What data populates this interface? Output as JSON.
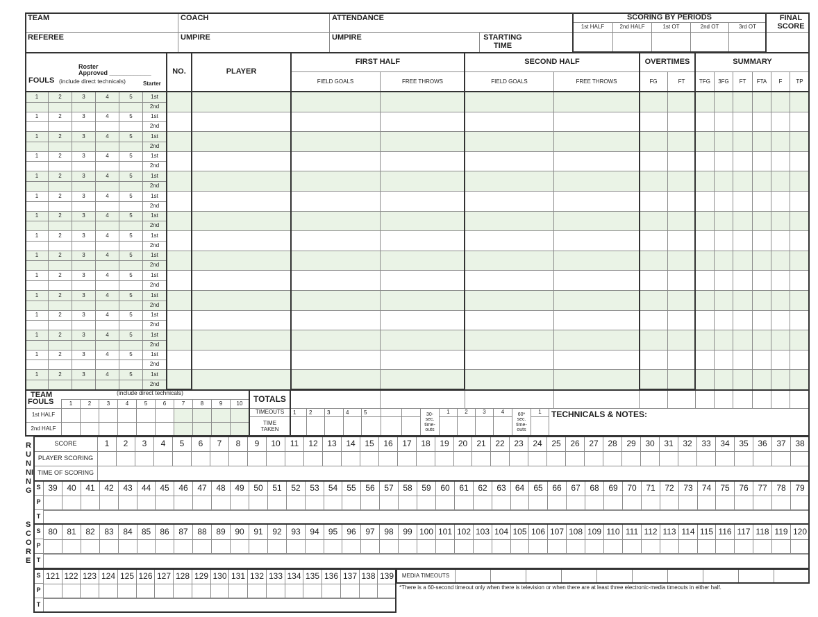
{
  "header": {
    "team": "TEAM",
    "coach": "COACH",
    "attendance": "ATTENDANCE",
    "referee": "REFEREE",
    "umpire": "UMPIRE",
    "umpire2": "UMPIRE",
    "starting_time": "STARTING TIME",
    "scoring_by_periods": "SCORING BY PERIODS",
    "periods": [
      "1st HALF",
      "2nd HALF",
      "1st OT",
      "2nd OT",
      "3rd OT"
    ],
    "final_score": "FINAL SCORE"
  },
  "roster": {
    "roster_approved": "Roster",
    "approved": "Approved ____________",
    "fouls": "FOULS",
    "fouls_note": "(include direct technicals)",
    "starter": "Starter",
    "foul_numbers": [
      "1",
      "2",
      "3",
      "4",
      "5"
    ],
    "halves": [
      "1st",
      "2nd"
    ],
    "no": "NO.",
    "player": "PLAYER",
    "first_half": "FIRST HALF",
    "second_half": "SECOND HALF",
    "overtimes": "OVERTIMES",
    "summary": "SUMMARY",
    "field_goals": "FIELD GOALS",
    "free_throws": "FREE THROWS",
    "ot_cols": [
      "FG",
      "FT"
    ],
    "summary_cols": [
      "TFG",
      "3FG",
      "FT",
      "FTA",
      "F",
      "TP"
    ],
    "row_shading_color": "#eaf3e6"
  },
  "team_fouls": {
    "title_1": "TEAM",
    "title_2": "FOULS",
    "note": "(include direct technicals)",
    "numbers": [
      "1",
      "2",
      "3",
      "4",
      "5",
      "6",
      "7",
      "8",
      "9",
      "10"
    ],
    "halves": [
      "1st HALF",
      "2nd HALF"
    ],
    "totals": "TOTALS"
  },
  "timeouts": {
    "label": "TIMEOUTS",
    "time_taken": "TIME TAKEN",
    "numbers": [
      "1",
      "2",
      "3",
      "4",
      "5",
      "",
      ""
    ],
    "thirty_sec": "30- sec. time- outs",
    "thirty_numbers": [
      "1",
      "2",
      "3",
      "4"
    ],
    "sixty_sec": "60* sec. time- outs",
    "sixty_numbers": [
      "1"
    ],
    "technicals": "TECHNICALS & NOTES:"
  },
  "running_score": {
    "side_label_1": "RUNNING",
    "side_label_2": "SCORE",
    "score": "SCORE",
    "player_scoring": "PLAYER SCORING",
    "time_of_scoring": "TIME OF SCORING",
    "row_letters": [
      "S",
      "P",
      "T"
    ],
    "ranges": [
      [
        1,
        38
      ],
      [
        39,
        79
      ],
      [
        80,
        120
      ],
      [
        121,
        139
      ]
    ],
    "media_timeouts": "MEDIA TIMEOUTS",
    "footnote": "*There is a 60-second timeout only when there is television or when there are at least three electronic-media timeouts in either half."
  }
}
